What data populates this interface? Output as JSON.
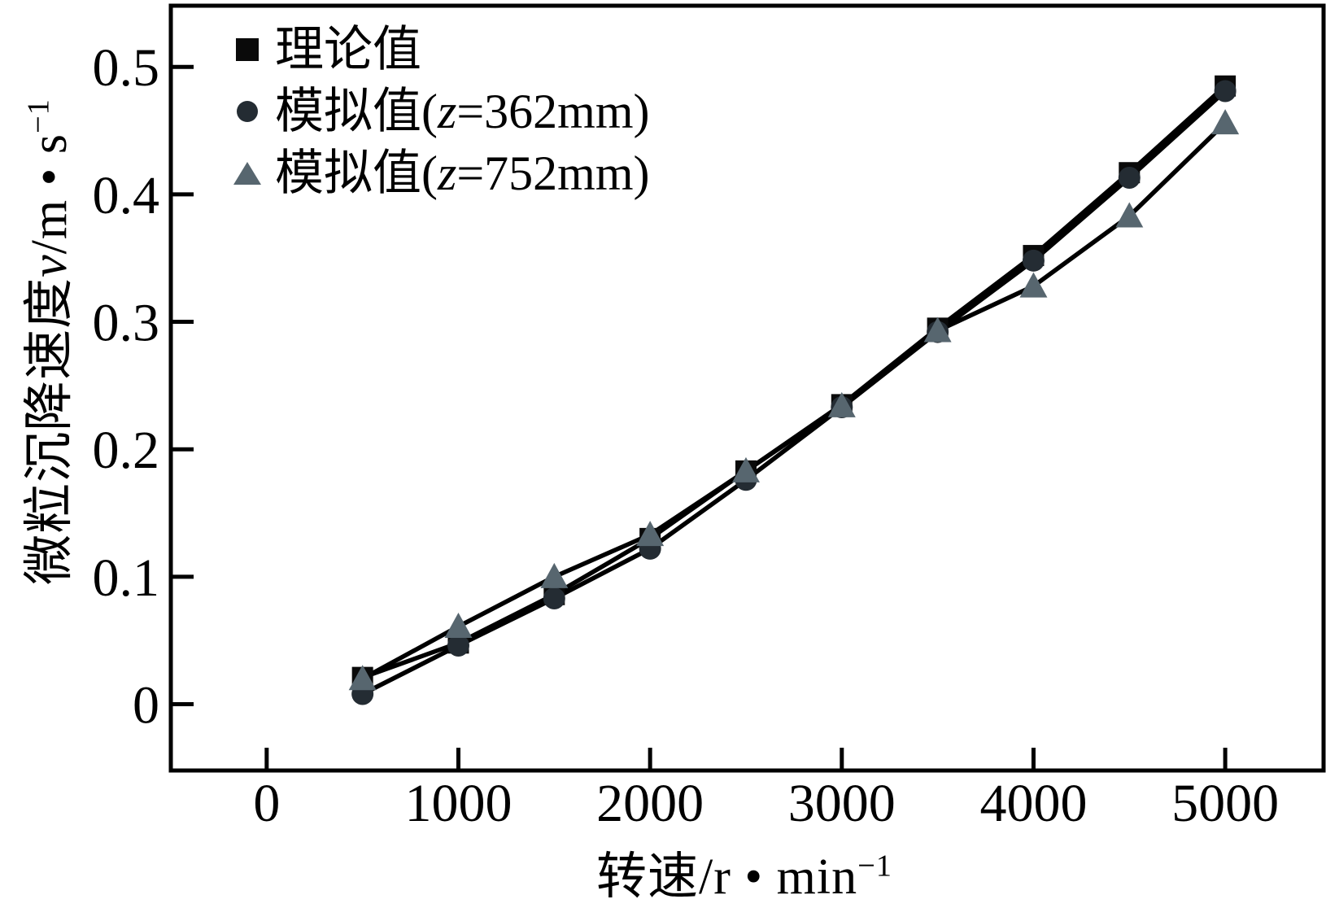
{
  "chart_data": {
    "type": "line",
    "title": "",
    "xlabel": "转速/r • min−1",
    "ylabel": "微粒沉降速度v/m • s−1",
    "xlabel_parts": {
      "main": "转速/r • min",
      "sup": "−1"
    },
    "ylabel_parts": {
      "cjk": "微粒沉降速度",
      "var": "v",
      "unit": "/m • s",
      "sup": "−1"
    },
    "x": [
      500,
      1000,
      1500,
      2000,
      2500,
      3000,
      3500,
      4000,
      4500,
      5000
    ],
    "series": [
      {
        "name": "理论值",
        "marker": "square",
        "color": "#0a0a0a",
        "values": [
          0.021,
          0.048,
          0.086,
          0.13,
          0.183,
          0.235,
          0.295,
          0.352,
          0.417,
          0.485
        ]
      },
      {
        "name": "模拟值(z=362mm)",
        "marker": "circle",
        "color": "#242c33",
        "values": [
          0.008,
          0.046,
          0.083,
          0.122,
          0.176,
          0.233,
          0.292,
          0.348,
          0.413,
          0.481
        ]
      },
      {
        "name": "模拟值(z=752mm)",
        "marker": "triangle",
        "color": "#57666f",
        "values": [
          0.02,
          0.061,
          0.1,
          0.133,
          0.183,
          0.234,
          0.293,
          0.328,
          0.383,
          0.456
        ]
      }
    ],
    "axes": {
      "x_ticks": [
        0,
        1000,
        2000,
        3000,
        4000,
        5000
      ],
      "x_tick_labels": [
        "0",
        "1000",
        "2000",
        "3000",
        "4000",
        "5000"
      ],
      "y_ticks": [
        0,
        0.1,
        0.2,
        0.3,
        0.4,
        0.5
      ],
      "y_tick_labels": [
        "0",
        "0.1",
        "0.2",
        "0.3",
        "0.4",
        "0.5"
      ],
      "xlim": [
        -500,
        5513
      ],
      "ylim": [
        -0.052,
        0.548
      ],
      "grid": false,
      "legend_position": "top-left"
    },
    "legend": {
      "items": [
        {
          "marker": "square",
          "pre": "理论值",
          "z": "",
          "post": ""
        },
        {
          "marker": "circle",
          "pre": "模拟值(",
          "z": "z",
          "post": "=362mm)"
        },
        {
          "marker": "triangle",
          "pre": "模拟值(",
          "z": "z",
          "post": "=752mm)"
        }
      ]
    },
    "colors": {
      "line": "#000000",
      "frame": "#000000",
      "text": "#000000",
      "square": "#0a0a0a",
      "circle": "#242c33",
      "triangle": "#57666f"
    }
  }
}
